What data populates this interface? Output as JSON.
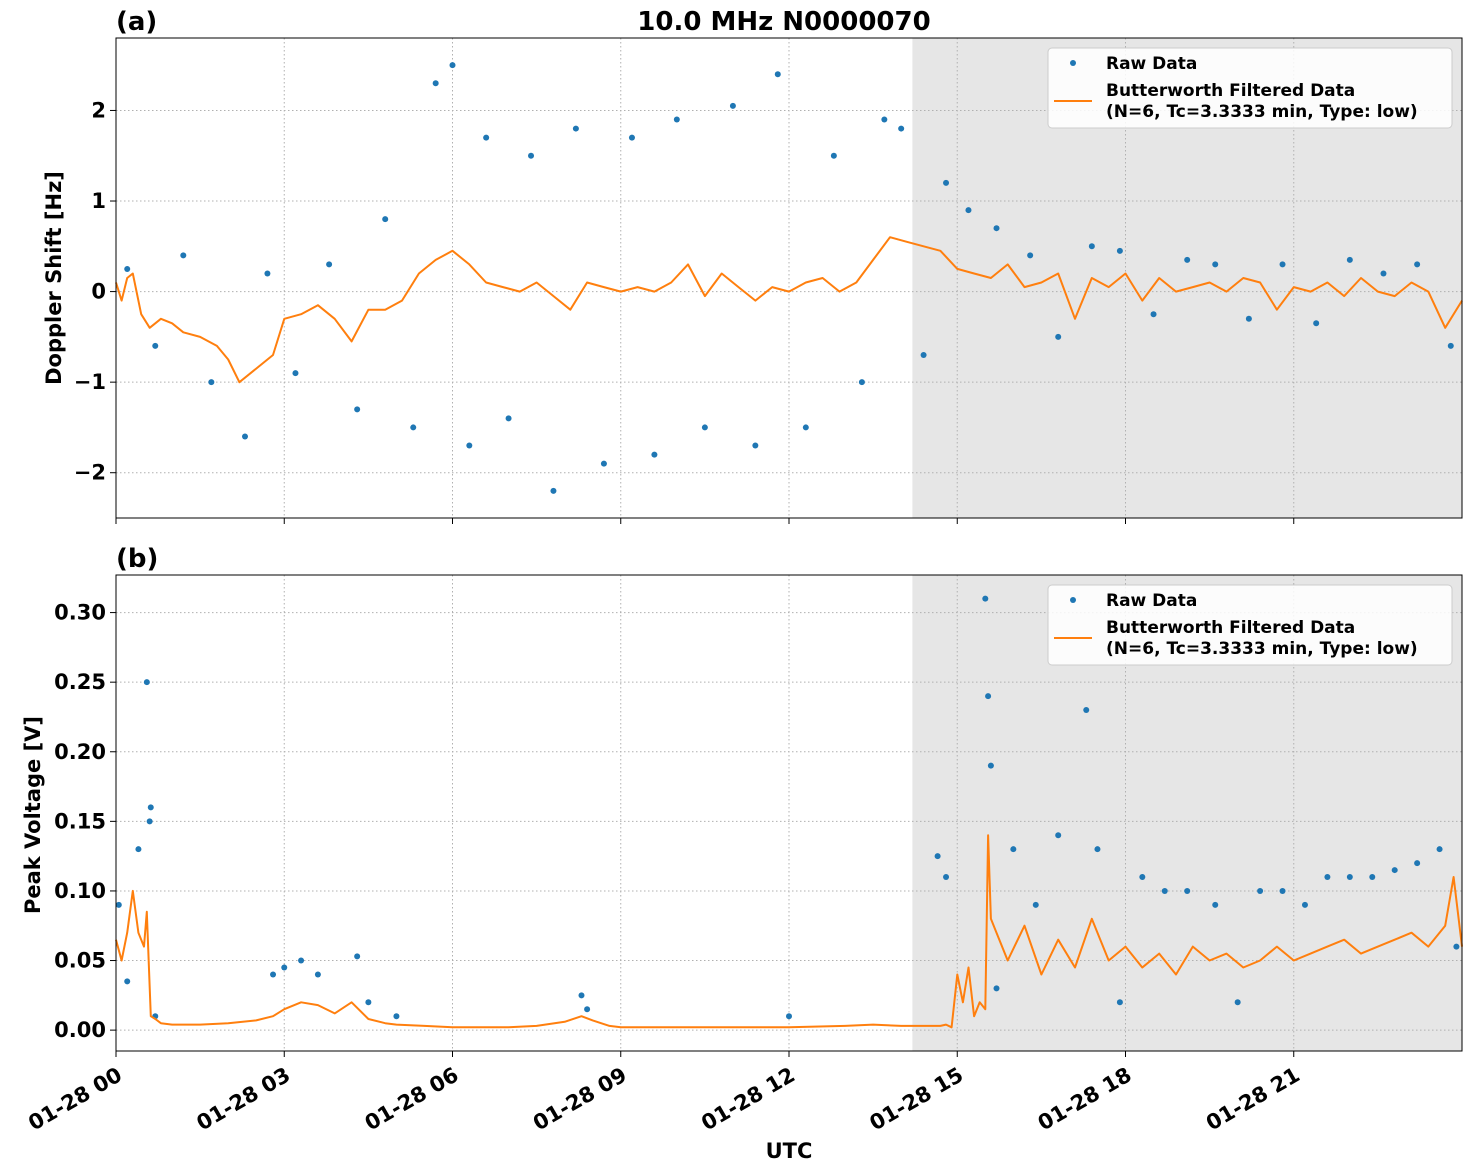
{
  "figure": {
    "title": "10.0 MHz N0000070",
    "xlabel": "UTC"
  },
  "colors": {
    "raw": "#1f77b4",
    "filtered": "#ff7f0e",
    "shade": "#e6e6e6",
    "grid": "#b0b0b0"
  },
  "legend": {
    "raw_label": "Raw Data",
    "filtered_label_line1": "Butterworth Filtered Data",
    "filtered_label_line2": "(N=6, Tc=3.3333 min, Type: low)"
  },
  "chart_data": [
    {
      "panel_label": "(a)",
      "type": "scatter",
      "ylabel": "Doppler Shift [Hz]",
      "xlim_hours": [
        0,
        24
      ],
      "ylim": [
        -2.5,
        2.8
      ],
      "yticks": [
        -2,
        -1,
        0,
        1,
        2
      ],
      "ytick_labels": [
        "−2",
        "−1",
        "0",
        "1",
        "2"
      ],
      "xticks_hours": [
        0,
        3,
        6,
        9,
        12,
        15,
        18,
        21
      ],
      "xtick_labels": [
        "01-28 00",
        "01-28 03",
        "01-28 06",
        "01-28 09",
        "01-28 12",
        "01-28 15",
        "01-28 18",
        "01-28 21"
      ],
      "shaded_span_hours": [
        14.2,
        24
      ],
      "grid": true,
      "legend_position": "top-right",
      "series": [
        {
          "name": "Butterworth Filtered Data",
          "kind": "line",
          "x_hours": [
            0,
            0.1,
            0.2,
            0.3,
            0.45,
            0.6,
            0.8,
            1.0,
            1.2,
            1.5,
            1.8,
            2.0,
            2.2,
            2.5,
            2.8,
            3.0,
            3.3,
            3.6,
            3.9,
            4.2,
            4.5,
            4.8,
            5.1,
            5.4,
            5.7,
            6.0,
            6.3,
            6.6,
            6.9,
            7.2,
            7.5,
            7.8,
            8.1,
            8.4,
            8.7,
            9.0,
            9.3,
            9.6,
            9.9,
            10.2,
            10.5,
            10.8,
            11.1,
            11.4,
            11.7,
            12.0,
            12.3,
            12.6,
            12.9,
            13.2,
            13.5,
            13.8,
            14.1,
            14.4,
            14.7,
            15.0,
            15.3,
            15.6,
            15.9,
            16.2,
            16.5,
            16.8,
            17.1,
            17.4,
            17.7,
            18.0,
            18.3,
            18.6,
            18.9,
            19.2,
            19.5,
            19.8,
            20.1,
            20.4,
            20.7,
            21.0,
            21.3,
            21.6,
            21.9,
            22.2,
            22.5,
            22.8,
            23.1,
            23.4,
            23.7,
            24.0
          ],
          "y": [
            0.1,
            -0.1,
            0.15,
            0.2,
            -0.25,
            -0.4,
            -0.3,
            -0.35,
            -0.45,
            -0.5,
            -0.6,
            -0.75,
            -1.0,
            -0.85,
            -0.7,
            -0.3,
            -0.25,
            -0.15,
            -0.3,
            -0.55,
            -0.2,
            -0.2,
            -0.1,
            0.2,
            0.35,
            0.45,
            0.3,
            0.1,
            0.05,
            0.0,
            0.1,
            -0.05,
            -0.2,
            0.1,
            0.05,
            0.0,
            0.05,
            0.0,
            0.1,
            0.3,
            -0.05,
            0.2,
            0.05,
            -0.1,
            0.05,
            0.0,
            0.1,
            0.15,
            0.0,
            0.1,
            0.35,
            0.6,
            0.55,
            0.5,
            0.45,
            0.25,
            0.2,
            0.15,
            0.3,
            0.05,
            0.1,
            0.2,
            -0.3,
            0.15,
            0.05,
            0.2,
            -0.1,
            0.15,
            0.0,
            0.05,
            0.1,
            0.0,
            0.15,
            0.1,
            -0.2,
            0.05,
            0.0,
            0.1,
            -0.05,
            0.15,
            0.0,
            -0.05,
            0.1,
            0.0,
            -0.4,
            -0.1
          ]
        },
        {
          "name": "Raw Data",
          "kind": "scatter",
          "x_hours": [
            0.2,
            0.7,
            1.2,
            1.7,
            2.3,
            2.7,
            3.2,
            3.8,
            4.3,
            4.8,
            5.3,
            5.7,
            6.0,
            6.3,
            6.6,
            7.0,
            7.4,
            7.8,
            8.2,
            8.7,
            9.2,
            9.6,
            10.0,
            10.5,
            11.0,
            11.4,
            11.8,
            12.3,
            12.8,
            13.3,
            13.7,
            14.0,
            14.4,
            14.8,
            15.2,
            15.7,
            16.3,
            16.8,
            17.4,
            17.9,
            18.5,
            19.1,
            19.6,
            20.2,
            20.8,
            21.4,
            22.0,
            22.6,
            23.2,
            23.8
          ],
          "y": [
            0.25,
            -0.6,
            0.4,
            -1.0,
            -1.6,
            0.2,
            -0.9,
            0.3,
            -1.3,
            0.8,
            -1.5,
            2.3,
            2.5,
            -1.7,
            1.7,
            -1.4,
            1.5,
            -2.2,
            1.8,
            -1.9,
            1.7,
            -1.8,
            1.9,
            -1.5,
            2.05,
            -1.7,
            2.4,
            -1.5,
            1.5,
            -1.0,
            1.9,
            1.8,
            -0.7,
            1.2,
            0.9,
            0.7,
            0.4,
            -0.5,
            0.5,
            0.45,
            -0.25,
            0.35,
            0.3,
            -0.3,
            0.3,
            -0.35,
            0.35,
            0.2,
            0.3,
            -0.6
          ]
        }
      ]
    },
    {
      "panel_label": "(b)",
      "type": "scatter",
      "ylabel": "Peak Voltage [V]",
      "xlim_hours": [
        0,
        24
      ],
      "ylim": [
        -0.015,
        0.327
      ],
      "yticks": [
        0.0,
        0.05,
        0.1,
        0.15,
        0.2,
        0.25,
        0.3
      ],
      "ytick_labels": [
        "0.00",
        "0.05",
        "0.10",
        "0.15",
        "0.20",
        "0.25",
        "0.30"
      ],
      "xticks_hours": [
        0,
        3,
        6,
        9,
        12,
        15,
        18,
        21
      ],
      "xtick_labels": [
        "01-28 00",
        "01-28 03",
        "01-28 06",
        "01-28 09",
        "01-28 12",
        "01-28 15",
        "01-28 18",
        "01-28 21"
      ],
      "shaded_span_hours": [
        14.2,
        24
      ],
      "grid": true,
      "legend_position": "top-right",
      "series": [
        {
          "name": "Butterworth Filtered Data",
          "kind": "line",
          "x_hours": [
            0,
            0.1,
            0.2,
            0.3,
            0.4,
            0.5,
            0.55,
            0.62,
            0.7,
            0.8,
            1.0,
            1.5,
            2.0,
            2.5,
            2.8,
            3.0,
            3.3,
            3.6,
            3.9,
            4.2,
            4.5,
            4.8,
            5.0,
            5.5,
            6.0,
            7.0,
            7.5,
            8.0,
            8.3,
            8.5,
            8.8,
            9.0,
            10.0,
            11.0,
            12.0,
            13.0,
            13.5,
            14.0,
            14.5,
            14.6,
            14.7,
            14.8,
            14.9,
            15.0,
            15.1,
            15.2,
            15.3,
            15.4,
            15.5,
            15.55,
            15.6,
            15.7,
            15.9,
            16.2,
            16.5,
            16.8,
            17.1,
            17.4,
            17.7,
            18.0,
            18.3,
            18.6,
            18.9,
            19.2,
            19.5,
            19.8,
            20.1,
            20.4,
            20.7,
            21.0,
            21.3,
            21.6,
            21.9,
            22.2,
            22.5,
            22.8,
            23.1,
            23.4,
            23.7,
            23.85,
            24.0
          ],
          "y": [
            0.065,
            0.05,
            0.07,
            0.1,
            0.07,
            0.06,
            0.085,
            0.01,
            0.008,
            0.005,
            0.004,
            0.004,
            0.005,
            0.007,
            0.01,
            0.015,
            0.02,
            0.018,
            0.012,
            0.02,
            0.008,
            0.005,
            0.004,
            0.003,
            0.002,
            0.002,
            0.003,
            0.006,
            0.01,
            0.007,
            0.003,
            0.002,
            0.002,
            0.002,
            0.002,
            0.003,
            0.004,
            0.003,
            0.003,
            0.003,
            0.003,
            0.004,
            0.002,
            0.04,
            0.02,
            0.045,
            0.01,
            0.02,
            0.015,
            0.14,
            0.08,
            0.07,
            0.05,
            0.075,
            0.04,
            0.065,
            0.045,
            0.08,
            0.05,
            0.06,
            0.045,
            0.055,
            0.04,
            0.06,
            0.05,
            0.055,
            0.045,
            0.05,
            0.06,
            0.05,
            0.055,
            0.06,
            0.065,
            0.055,
            0.06,
            0.065,
            0.07,
            0.06,
            0.075,
            0.11,
            0.06
          ]
        },
        {
          "name": "Raw Data",
          "kind": "scatter",
          "x_hours": [
            0.05,
            0.2,
            0.4,
            0.55,
            0.6,
            0.62,
            0.7,
            2.8,
            3.0,
            3.3,
            3.6,
            4.3,
            4.5,
            5.0,
            8.3,
            8.4,
            12.0,
            14.65,
            14.8,
            15.5,
            15.55,
            15.6,
            15.7,
            16.0,
            16.4,
            16.8,
            17.3,
            17.5,
            17.9,
            18.3,
            18.7,
            19.1,
            19.6,
            20.0,
            20.4,
            20.8,
            21.2,
            21.6,
            22.0,
            22.4,
            22.8,
            23.2,
            23.6,
            23.9
          ],
          "y": [
            0.09,
            0.035,
            0.13,
            0.25,
            0.15,
            0.16,
            0.01,
            0.04,
            0.045,
            0.05,
            0.04,
            0.053,
            0.02,
            0.01,
            0.025,
            0.015,
            0.01,
            0.125,
            0.11,
            0.31,
            0.24,
            0.19,
            0.03,
            0.13,
            0.09,
            0.14,
            0.23,
            0.13,
            0.02,
            0.11,
            0.1,
            0.1,
            0.09,
            0.02,
            0.1,
            0.1,
            0.09,
            0.11,
            0.11,
            0.11,
            0.115,
            0.12,
            0.13,
            0.06
          ]
        }
      ]
    }
  ]
}
